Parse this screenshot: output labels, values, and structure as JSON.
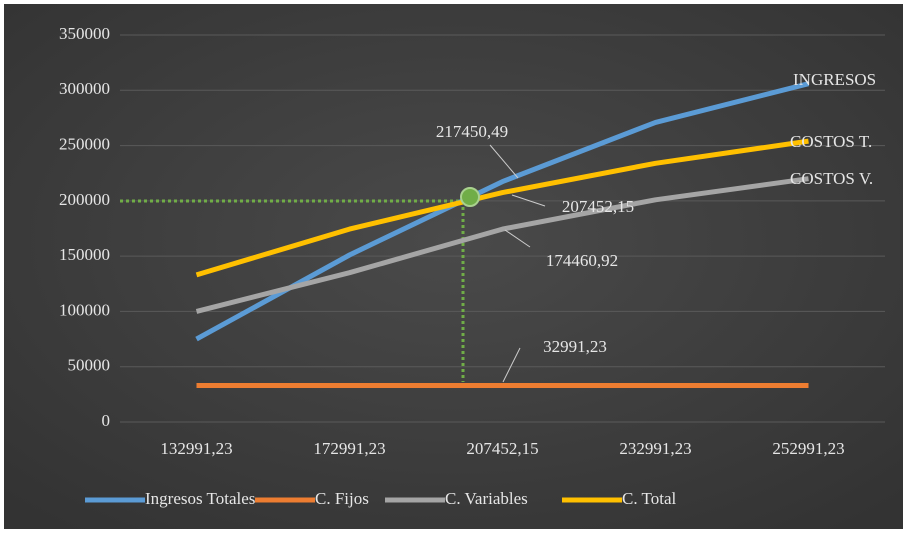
{
  "chart_data": {
    "type": "line",
    "categories": [
      "132991,23",
      "172991,23",
      "207452,15",
      "232991,23",
      "252991,23"
    ],
    "series": [
      {
        "name": "Ingresos Totales",
        "color": "#5b9bd5",
        "values": [
          75000,
          151000,
          217450.49,
          271000,
          306000
        ],
        "value_labels": [
          null,
          null,
          "217450,49",
          null,
          null
        ],
        "end_label": "INGRESOS"
      },
      {
        "name": "C. Fijos",
        "color": "#ed7d31",
        "values": [
          32991.23,
          32991.23,
          32991.23,
          32991.23,
          32991.23
        ],
        "value_labels": [
          null,
          null,
          "32991,23",
          null,
          null
        ]
      },
      {
        "name": "C. Variables",
        "color": "#a5a5a5",
        "values": [
          100000,
          135000,
          174460.92,
          201000,
          220000
        ],
        "value_labels": [
          null,
          null,
          "174460,92",
          null,
          null
        ],
        "end_label": "COSTOS V."
      },
      {
        "name": "C. Total",
        "color": "#ffc000",
        "values": [
          133000,
          174500,
          207452.15,
          234000,
          254000
        ],
        "value_labels": [
          null,
          null,
          "207452,15",
          null,
          null
        ],
        "end_label": "COSTOS T."
      }
    ],
    "ylim": [
      0,
      350000
    ],
    "yticks": [
      0,
      50000,
      100000,
      150000,
      200000,
      250000,
      300000,
      350000
    ],
    "grid": true,
    "legend": "bottom"
  }
}
